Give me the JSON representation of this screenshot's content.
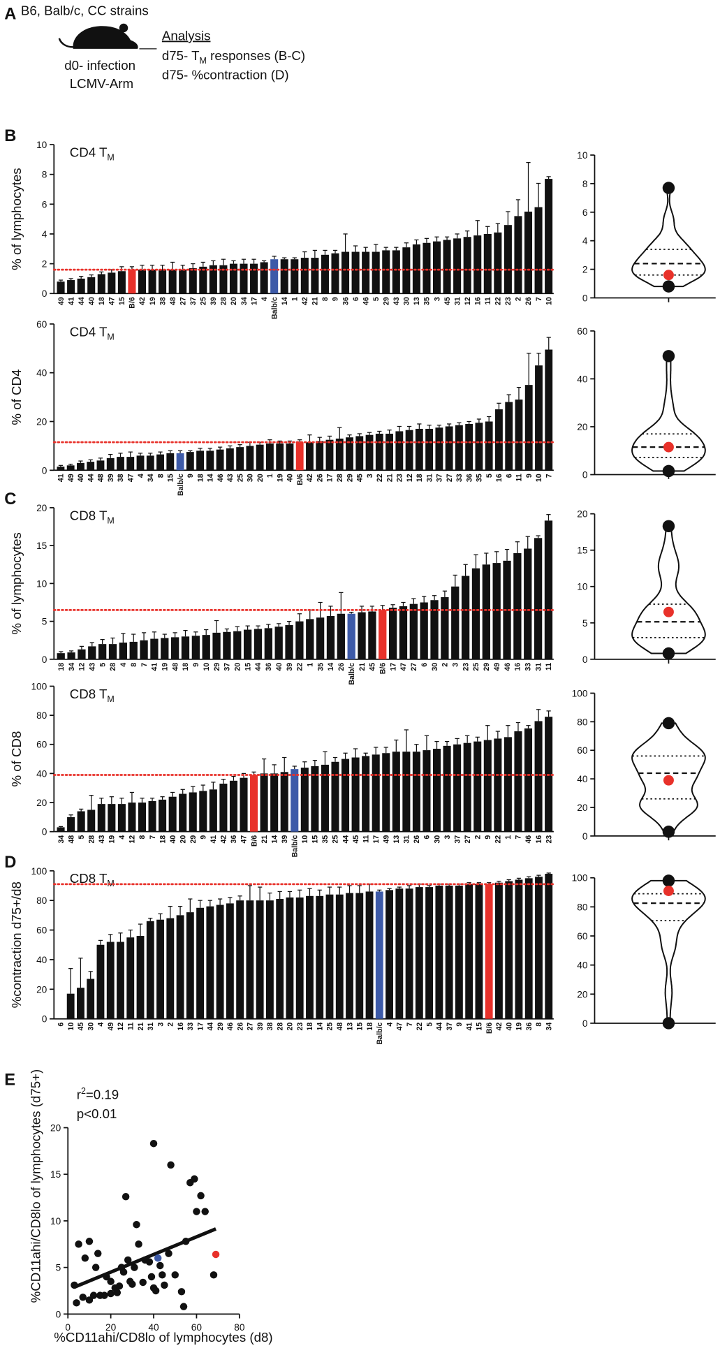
{
  "panel_a": {
    "letter": "A",
    "heading": "B6, Balb/c, CC strains",
    "infection": [
      "d0- infection",
      "LCMV-Arm"
    ],
    "analysis_title": "Analysis",
    "analysis": [
      [
        "d75- T",
        "M",
        " responses (B-C)"
      ],
      [
        "d75- %contraction (D)"
      ]
    ]
  },
  "chart_data": [
    {
      "type": "bar",
      "panel": "B",
      "title": "CD4 T",
      "title_sub": "M",
      "ylabel": "% of lymphocytes",
      "color": "#111111",
      "highlight": {
        "B/6": "#e8312a",
        "Balb/c": "#3d5aa8"
      },
      "hline": 1.6,
      "hline_color": "#e8312a",
      "categories": [
        "49",
        "41",
        "44",
        "40",
        "18",
        "47",
        "15",
        "B/6",
        "42",
        "19",
        "38",
        "48",
        "27",
        "37",
        "25",
        "39",
        "28",
        "20",
        "34",
        "17",
        "4",
        "Balb/c",
        "14",
        "1",
        "42",
        "21",
        "8",
        "9",
        "36",
        "6",
        "46",
        "5",
        "29",
        "43",
        "30",
        "13",
        "35",
        "3",
        "45",
        "31",
        "12",
        "16",
        "11",
        "22",
        "23",
        "2",
        "26",
        "7",
        "10"
      ],
      "values": [
        0.8,
        0.9,
        1.0,
        1.1,
        1.3,
        1.4,
        1.5,
        1.6,
        1.6,
        1.6,
        1.6,
        1.6,
        1.6,
        1.7,
        1.8,
        1.9,
        1.9,
        2.0,
        2.0,
        2.0,
        2.1,
        2.3,
        2.3,
        2.3,
        2.4,
        2.4,
        2.6,
        2.7,
        2.8,
        2.8,
        2.8,
        2.8,
        2.9,
        2.9,
        3.1,
        3.3,
        3.4,
        3.5,
        3.6,
        3.7,
        3.8,
        3.9,
        4.0,
        4.1,
        4.6,
        5.2,
        5.5,
        5.8,
        7.7
      ],
      "errors": [
        0.1,
        0.1,
        0.15,
        0.15,
        0.15,
        0.2,
        0.3,
        0.2,
        0.3,
        0.3,
        0.3,
        0.5,
        0.3,
        0.3,
        0.3,
        0.3,
        0.4,
        0.2,
        0.3,
        0.3,
        0.1,
        0.2,
        0.1,
        0.1,
        0.4,
        0.5,
        0.3,
        0.2,
        1.2,
        0.4,
        0.3,
        0.5,
        0.2,
        0.2,
        0.3,
        0.3,
        0.3,
        0.3,
        0.2,
        0.3,
        0.4,
        1.0,
        0.5,
        0.6,
        0.9,
        1.1,
        3.3,
        1.6,
        0.15
      ],
      "ylim": [
        0,
        10
      ],
      "yticks": [
        0,
        2,
        4,
        6,
        8,
        10
      ],
      "violin_ylim": [
        0,
        10
      ],
      "violin_yticks": [
        0,
        2,
        4,
        6,
        8,
        10
      ]
    },
    {
      "type": "bar",
      "title": "CD4 T",
      "title_sub": "M",
      "ylabel": "% of CD4",
      "color": "#111111",
      "highlight": {
        "B/6": "#e8312a",
        "Balb/c": "#3d5aa8"
      },
      "hline": 11.5,
      "hline_color": "#e8312a",
      "categories": [
        "41",
        "49",
        "40",
        "44",
        "48",
        "39",
        "38",
        "47",
        "4",
        "34",
        "8",
        "15",
        "Balb/c",
        "9",
        "18",
        "14",
        "46",
        "43",
        "25",
        "30",
        "20",
        "1",
        "19",
        "40",
        "B/6",
        "42",
        "26",
        "17",
        "28",
        "29",
        "45",
        "3",
        "22",
        "21",
        "23",
        "12",
        "18",
        "31",
        "37",
        "27",
        "33",
        "36",
        "35",
        "5",
        "16",
        "6",
        "11",
        "9",
        "10",
        "7"
      ],
      "values": [
        1.5,
        2,
        3,
        3.5,
        4,
        5,
        5.5,
        5.5,
        6,
        6,
        6.5,
        7,
        7,
        7.5,
        8,
        8,
        8.5,
        9,
        9.5,
        10,
        10.5,
        11,
        11,
        11,
        11.5,
        11.5,
        12,
        12.5,
        13,
        13.5,
        14,
        14.5,
        15,
        15,
        16,
        16.5,
        17,
        17,
        17.5,
        18,
        18.5,
        19,
        19.5,
        20,
        25,
        28,
        29,
        35,
        43,
        49.5
      ],
      "errors": [
        0.5,
        0.5,
        0.8,
        0.8,
        1,
        1.5,
        1.5,
        2,
        1,
        1,
        1,
        1,
        1,
        0.5,
        1,
        1,
        1,
        1,
        1,
        1.5,
        1,
        1.5,
        1,
        1,
        1,
        3,
        1.5,
        1.5,
        4.5,
        1,
        1,
        1,
        1,
        1.5,
        2,
        1.5,
        2,
        1.5,
        1,
        1,
        1,
        1,
        1.5,
        2,
        2.5,
        3,
        5,
        13,
        5,
        5
      ],
      "ylim": [
        0,
        60
      ],
      "yticks": [
        0,
        20,
        40,
        60
      ],
      "violin_ylim": [
        0,
        60
      ],
      "violin_yticks": [
        0,
        20,
        40,
        60
      ]
    },
    {
      "type": "bar",
      "panel": "C",
      "title": "CD8 T",
      "title_sub": "M",
      "ylabel": "% of lymphocytes",
      "color": "#111111",
      "highlight": {
        "B/6": "#e8312a",
        "Balb/c": "#3d5aa8"
      },
      "hline": 6.5,
      "hline_color": "#e8312a",
      "categories": [
        "18",
        "34",
        "12",
        "43",
        "5",
        "28",
        "4",
        "8",
        "7",
        "41",
        "19",
        "48",
        "18",
        "9",
        "10",
        "29",
        "37",
        "20",
        "15",
        "44",
        "36",
        "40",
        "39",
        "22",
        "1",
        "35",
        "14",
        "26",
        "Balb/c",
        "21",
        "45",
        "B/6",
        "17",
        "47",
        "27",
        "6",
        "30",
        "2",
        "3",
        "23",
        "25",
        "29",
        "49",
        "46",
        "16",
        "33",
        "31",
        "11"
      ],
      "values": [
        0.8,
        0.9,
        1.3,
        1.7,
        2.0,
        2.0,
        2.2,
        2.3,
        2.5,
        2.7,
        2.8,
        2.9,
        3.0,
        3.1,
        3.2,
        3.5,
        3.6,
        3.7,
        3.9,
        4.0,
        4.1,
        4.3,
        4.5,
        5.0,
        5.3,
        5.5,
        5.7,
        6.0,
        6.0,
        6.2,
        6.3,
        6.5,
        6.8,
        7.0,
        7.3,
        7.5,
        7.8,
        8.2,
        9.6,
        11,
        12,
        12.5,
        12.7,
        13,
        14,
        14.6,
        16,
        18.3
      ],
      "errors": [
        0.2,
        0.2,
        0.4,
        0.5,
        0.6,
        0.8,
        1.2,
        1,
        1,
        0.9,
        0.5,
        0.6,
        0.8,
        0.5,
        0.7,
        1.6,
        0.4,
        0.6,
        0.5,
        0.4,
        0.5,
        0.4,
        0.5,
        1,
        1.2,
        2,
        1.3,
        2.8,
        0.2,
        0.8,
        0.7,
        0.6,
        0.4,
        0.5,
        0.7,
        0.8,
        0.6,
        0.8,
        1.5,
        1.5,
        1.8,
        1.5,
        1.5,
        1.5,
        1.5,
        1.6,
        0.3,
        0.8
      ],
      "ylim": [
        0,
        20
      ],
      "yticks": [
        0,
        5,
        10,
        15,
        20
      ],
      "violin_ylim": [
        0,
        20
      ],
      "violin_yticks": [
        0,
        5,
        10,
        15,
        20
      ]
    },
    {
      "type": "bar",
      "title": "CD8 T",
      "title_sub": "M",
      "ylabel": "% of CD8",
      "color": "#111111",
      "highlight": {
        "B/6": "#e8312a",
        "Balb/c": "#3d5aa8"
      },
      "hline": 39,
      "hline_color": "#e8312a",
      "categories": [
        "34",
        "48",
        "5",
        "28",
        "43",
        "19",
        "4",
        "12",
        "8",
        "7",
        "18",
        "40",
        "20",
        "29",
        "9",
        "41",
        "42",
        "36",
        "47",
        "B/6",
        "21",
        "14",
        "39",
        "Balb/c",
        "10",
        "15",
        "35",
        "25",
        "44",
        "45",
        "11",
        "17",
        "49",
        "13",
        "31",
        "26",
        "6",
        "30",
        "3",
        "37",
        "27",
        "2",
        "9",
        "22",
        "1",
        "7",
        "46",
        "16",
        "23"
      ],
      "values": [
        3,
        10,
        14,
        15,
        19,
        19,
        19,
        20,
        20,
        21,
        22,
        24,
        26,
        27,
        28,
        29,
        33,
        35,
        37,
        39,
        40,
        40,
        41,
        43,
        44,
        45,
        46,
        48,
        50,
        51,
        52,
        53,
        54,
        55,
        55,
        55,
        56,
        57,
        59,
        60,
        61,
        62,
        63,
        64,
        65,
        69,
        71,
        76,
        79
      ],
      "errors": [
        0.5,
        1.5,
        1.5,
        10,
        4,
        5,
        4,
        7,
        3,
        2,
        2,
        3,
        3,
        4,
        4,
        5,
        3,
        3,
        3,
        2,
        10,
        6,
        10,
        2,
        4,
        4,
        9,
        3,
        4,
        6,
        2,
        5,
        4,
        8,
        15,
        5,
        10,
        5,
        3,
        4,
        5,
        3,
        10,
        5,
        8,
        6,
        2,
        8,
        4
      ],
      "ylim": [
        0,
        100
      ],
      "yticks": [
        0,
        20,
        40,
        60,
        80,
        100
      ],
      "violin_ylim": [
        0,
        100
      ],
      "violin_yticks": [
        0,
        20,
        40,
        60,
        80,
        100
      ]
    },
    {
      "type": "bar",
      "panel": "D",
      "title": "CD8 T",
      "title_sub": "M",
      "ylabel": "%contraction d75+/d8",
      "color": "#111111",
      "highlight": {
        "B/6": "#e8312a",
        "Balb/c": "#3d5aa8"
      },
      "hline": 91,
      "hline_color": "#e8312a",
      "categories": [
        "6",
        "10",
        "45",
        "30",
        "4",
        "49",
        "12",
        "11",
        "21",
        "31",
        "3",
        "2",
        "16",
        "33",
        "17",
        "44",
        "29",
        "46",
        "26",
        "27",
        "39",
        "38",
        "28",
        "20",
        "23",
        "18",
        "14",
        "25",
        "48",
        "13",
        "15",
        "18",
        "Balb/c",
        "4",
        "47",
        "7",
        "22",
        "5",
        "44",
        "37",
        "9",
        "41",
        "15",
        "B/6",
        "42",
        "40",
        "19",
        "36",
        "8",
        "34"
      ],
      "values": [
        0,
        17,
        21,
        27,
        50,
        52,
        52,
        55,
        56,
        66,
        67,
        68,
        70,
        72,
        75,
        76,
        77,
        78,
        80,
        80,
        80,
        80,
        81,
        82,
        82,
        83,
        83,
        84,
        84,
        85,
        85,
        86,
        86,
        87,
        88,
        88,
        89,
        89,
        90,
        90,
        90,
        91,
        91,
        91,
        92,
        93,
        94,
        95,
        96,
        98
      ],
      "errors": [
        0,
        17,
        20,
        5,
        3,
        5,
        6,
        5,
        8,
        2,
        4,
        8,
        6,
        9,
        5,
        4,
        4,
        4,
        3,
        10,
        9,
        5,
        5,
        4,
        5,
        5,
        4,
        5,
        5,
        5,
        5,
        5,
        1,
        1,
        1,
        2,
        2,
        1,
        1,
        1,
        1,
        1,
        1,
        1,
        1,
        1,
        1,
        1,
        1,
        0.5
      ],
      "ylim": [
        0,
        100
      ],
      "yticks": [
        0,
        20,
        40,
        60,
        80,
        100
      ],
      "violin_ylim": [
        0,
        100
      ],
      "violin_yticks": [
        0,
        20,
        40,
        60,
        80,
        100
      ]
    },
    {
      "type": "scatter",
      "panel": "E",
      "annotations": [
        "r",
        "2",
        "=0.19",
        "p<0.01"
      ],
      "xlabel": "%CD11ahi/CD8lo of lymphocytes (d8)",
      "ylabel": "%CD11ahi/CD8lo of lymphocytes (d75+)",
      "fit_line": true,
      "xlim": [
        0,
        80
      ],
      "xticks": [
        0,
        20,
        40,
        60,
        80
      ],
      "ylim": [
        0,
        20
      ],
      "yticks": [
        0,
        5,
        10,
        15,
        20
      ],
      "series": [
        {
          "color": "#111111",
          "x": [
            3,
            4,
            5,
            7,
            8,
            10,
            10,
            12,
            13,
            14,
            15,
            17,
            18,
            20,
            20,
            22,
            23,
            24,
            25,
            26,
            27,
            28,
            29,
            30,
            31,
            32,
            33,
            35,
            36,
            38,
            39,
            40,
            40,
            41,
            43,
            44,
            45,
            47,
            48,
            50,
            53,
            54,
            55,
            57,
            59,
            60,
            62,
            64,
            68
          ],
          "y": [
            3.1,
            1.2,
            7.5,
            1.8,
            6,
            7.8,
            1.5,
            2,
            5,
            6.5,
            2,
            2,
            4,
            3.5,
            2.2,
            2.8,
            2.3,
            3,
            5,
            4.5,
            12.6,
            5.8,
            3.5,
            3.2,
            5,
            9.6,
            7.5,
            3.4,
            5.8,
            5.6,
            4,
            2.8,
            18.3,
            2.5,
            5.2,
            4.2,
            3.1,
            6.5,
            16,
            4.2,
            2.4,
            0.8,
            7.8,
            14.1,
            14.5,
            11,
            12.7,
            11,
            4.2
          ]
        },
        {
          "color": "#3d5aa8",
          "x": [
            42
          ],
          "y": [
            6
          ]
        },
        {
          "color": "#e8312a",
          "x": [
            69
          ],
          "y": [
            6.4
          ]
        }
      ]
    }
  ]
}
